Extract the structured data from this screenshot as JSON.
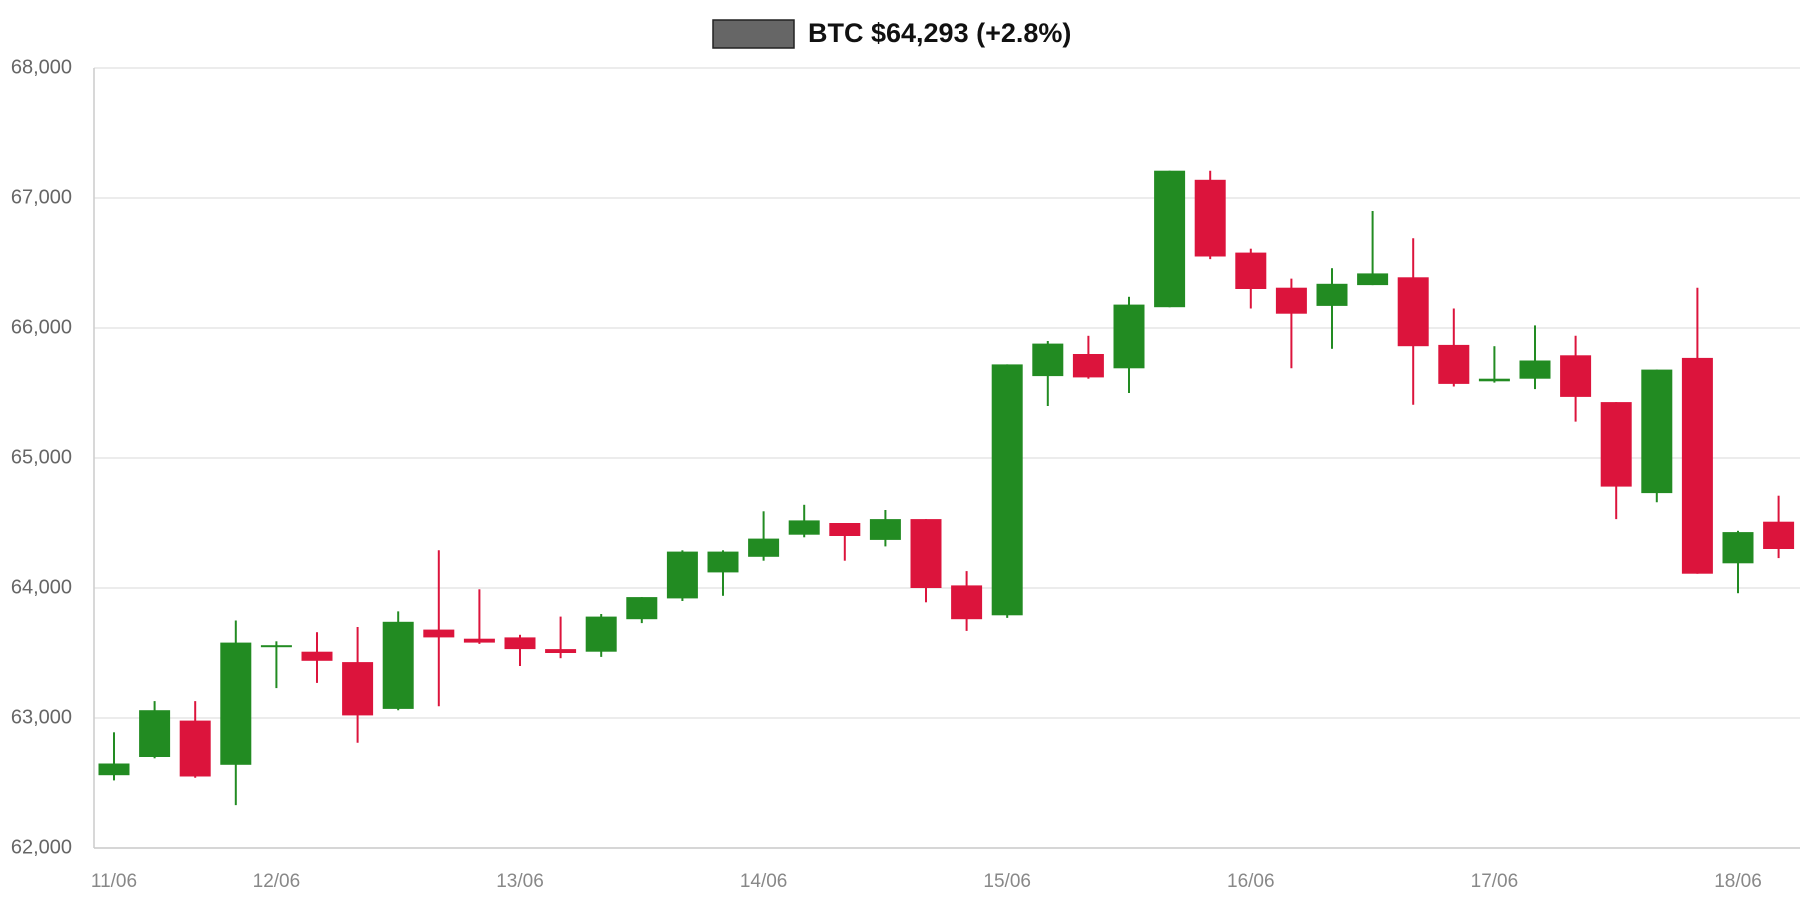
{
  "chart_data": {
    "type": "candlestick",
    "series": [
      {
        "name": "BTC $64,293 (+2.8%)",
        "color": "#666666",
        "open": [
          62560,
          62700,
          62980,
          62640,
          63550,
          63510,
          63430,
          63070,
          63680,
          63610,
          63620,
          63530,
          63510,
          63760,
          63920,
          64120,
          64240,
          64410,
          64500,
          64370,
          64530,
          64020,
          63790,
          65630,
          65800,
          65690,
          66160,
          67140,
          66580,
          66310,
          66170,
          66330,
          66390,
          65870,
          65590,
          65610,
          65790,
          65430,
          64730,
          65770,
          64190,
          64510
        ],
        "high": [
          62890,
          63130,
          63130,
          63750,
          63590,
          63660,
          63700,
          63820,
          64290,
          63990,
          63640,
          63780,
          63800,
          63930,
          64290,
          64290,
          64590,
          64640,
          64500,
          64600,
          64530,
          64130,
          65720,
          65900,
          65940,
          66240,
          67210,
          67210,
          66610,
          66380,
          66460,
          66900,
          66690,
          66150,
          65860,
          66020,
          65940,
          65430,
          65680,
          66310,
          64440,
          64710
        ],
        "low": [
          62520,
          62690,
          62540,
          62330,
          63230,
          63270,
          62810,
          63060,
          63090,
          63570,
          63400,
          63460,
          63470,
          63730,
          63900,
          63940,
          64210,
          64390,
          64210,
          64320,
          63890,
          63670,
          63770,
          65400,
          65610,
          65500,
          66160,
          66530,
          66150,
          65690,
          65840,
          66330,
          65410,
          65550,
          65580,
          65530,
          65280,
          64530,
          64660,
          64110,
          63960,
          64230
        ],
        "close": [
          62650,
          63060,
          62550,
          63580,
          63560,
          63440,
          63020,
          63740,
          63620,
          63580,
          63530,
          63500,
          63780,
          63930,
          64280,
          64280,
          64380,
          64520,
          64400,
          64530,
          64000,
          63760,
          65720,
          65880,
          65620,
          66180,
          67210,
          66550,
          66300,
          66110,
          66340,
          66420,
          65860,
          65570,
          65610,
          65750,
          65470,
          64780,
          65680,
          64110,
          64430,
          64300
        ]
      }
    ],
    "categories": [
      "11/06",
      null,
      null,
      null,
      "12/06",
      null,
      null,
      null,
      null,
      null,
      "13/06",
      null,
      null,
      null,
      null,
      null,
      "14/06",
      null,
      null,
      null,
      null,
      null,
      "15/06",
      null,
      null,
      null,
      null,
      null,
      "16/06",
      null,
      null,
      null,
      null,
      null,
      "17/06",
      null,
      null,
      null,
      null,
      null,
      "18/06",
      null
    ],
    "up_color": "#228b22",
    "down_color": "#dc143c",
    "ylim": [
      62000,
      68000
    ],
    "yticks": [
      {
        "value": 62000,
        "label": "62,000"
      },
      {
        "value": 63000,
        "label": "63,000"
      },
      {
        "value": 64000,
        "label": "64,000"
      },
      {
        "value": 65000,
        "label": "65,000"
      },
      {
        "value": 66000,
        "label": "66,000"
      },
      {
        "value": 67000,
        "label": "67,000"
      },
      {
        "value": 68000,
        "label": "68,000"
      }
    ],
    "grid": true
  }
}
